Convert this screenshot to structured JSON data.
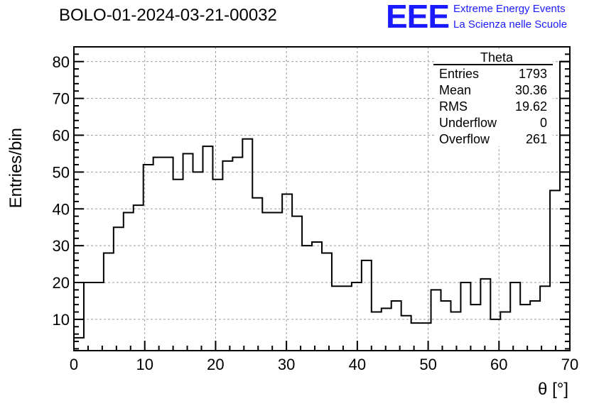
{
  "header": {
    "title": "BOLO-01-2024-03-21-00032",
    "logo": {
      "mark": "EEE",
      "line1": "Extreme Energy Events",
      "line2": "La Scienza nelle Scuole",
      "color": "#1a1aff"
    }
  },
  "chart_data": {
    "type": "histogram",
    "xlabel": "θ [°]",
    "ylabel": "Entries/bin",
    "xlim": [
      0,
      70
    ],
    "ylim": [
      1.5,
      84
    ],
    "x_ticks": [
      "0",
      "10",
      "20",
      "30",
      "40",
      "50",
      "60",
      "70"
    ],
    "y_ticks": [
      "10",
      "20",
      "30",
      "40",
      "50",
      "60",
      "70",
      "80"
    ],
    "grid": true,
    "bin_width": 1.4,
    "bin_edges_start": 0,
    "values": [
      5,
      20,
      20,
      28,
      35,
      39,
      41,
      52,
      54,
      54,
      48,
      55,
      50,
      57,
      48,
      53,
      54,
      59,
      43,
      39,
      39,
      44,
      38,
      30,
      31,
      28,
      19,
      19,
      20,
      26,
      12,
      13,
      15,
      11,
      9,
      9,
      18,
      15,
      12,
      20,
      14,
      21,
      10,
      12,
      20,
      14,
      15,
      19,
      45,
      80
    ],
    "stats": {
      "title": "Theta",
      "rows": [
        {
          "label": "Entries",
          "value": "1793"
        },
        {
          "label": "Mean",
          "value": "30.36"
        },
        {
          "label": "RMS",
          "value": "19.62"
        },
        {
          "label": "Underflow",
          "value": "0"
        },
        {
          "label": "Overflow",
          "value": "261"
        }
      ]
    }
  }
}
